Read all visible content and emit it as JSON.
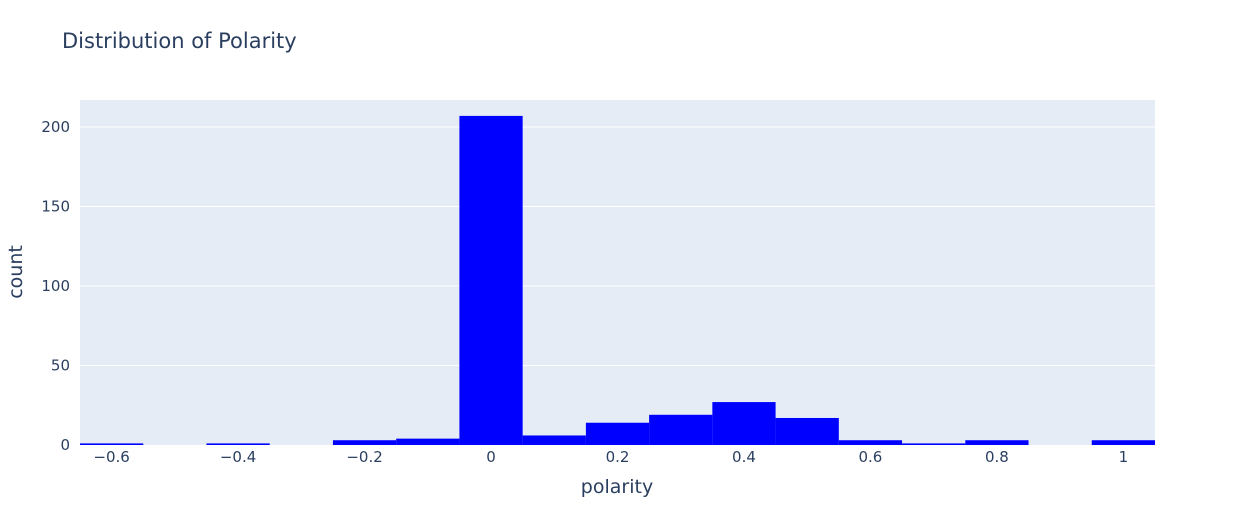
{
  "chart_data": {
    "type": "bar",
    "title": "Distribution of Polarity",
    "xlabel": "polarity",
    "ylabel": "count",
    "xlim": [
      -0.65,
      1.05
    ],
    "ylim": [
      0,
      217
    ],
    "bin_width": 0.1,
    "x": [
      -0.6,
      -0.5,
      -0.4,
      -0.3,
      -0.2,
      -0.1,
      0.0,
      0.1,
      0.2,
      0.3,
      0.4,
      0.5,
      0.6,
      0.7,
      0.8,
      0.9,
      1.0
    ],
    "values": [
      1,
      0,
      1,
      0,
      3,
      4,
      207,
      6,
      14,
      19,
      27,
      17,
      3,
      1,
      3,
      0,
      3
    ],
    "xticks": [
      -0.6,
      -0.4,
      -0.2,
      0,
      0.2,
      0.4,
      0.6,
      0.8,
      1
    ],
    "xtick_labels": [
      "−0.6",
      "−0.4",
      "−0.2",
      "0",
      "0.2",
      "0.4",
      "0.6",
      "0.8",
      "1"
    ],
    "yticks": [
      0,
      50,
      100,
      150,
      200
    ],
    "ytick_labels": [
      "0",
      "50",
      "100",
      "150",
      "200"
    ],
    "grid": true,
    "colors": {
      "bar": "#0000ff",
      "plot_bg": "#e5ecf6",
      "grid": "#ffffff",
      "text": "#2a3f5f"
    }
  }
}
